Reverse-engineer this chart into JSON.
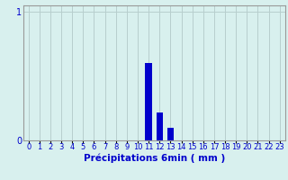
{
  "title": "",
  "xlabel": "Précipitations 6min ( mm )",
  "ylabel": "",
  "xlim": [
    -0.5,
    23.5
  ],
  "ylim": [
    0,
    1.05
  ],
  "yticks": [
    0,
    1
  ],
  "ytick_labels": [
    "0",
    "1"
  ],
  "xtick_labels": [
    "0",
    "1",
    "2",
    "3",
    "4",
    "5",
    "6",
    "7",
    "8",
    "9",
    "10",
    "11",
    "12",
    "13",
    "14",
    "15",
    "16",
    "17",
    "18",
    "19",
    "20",
    "21",
    "22",
    "23"
  ],
  "bar_values": [
    0,
    0,
    0,
    0,
    0,
    0,
    0,
    0,
    0,
    0,
    0,
    0.6,
    0.22,
    0.1,
    0,
    0,
    0,
    0,
    0,
    0,
    0,
    0,
    0,
    0
  ],
  "bar_color": "#0000cc",
  "bg_color": "#d8f0ee",
  "grid_color": "#b8cece",
  "spine_color": "#999999",
  "text_color": "#0000cc",
  "xlabel_fontsize": 7.5,
  "ytick_fontsize": 7,
  "xtick_fontsize": 6
}
